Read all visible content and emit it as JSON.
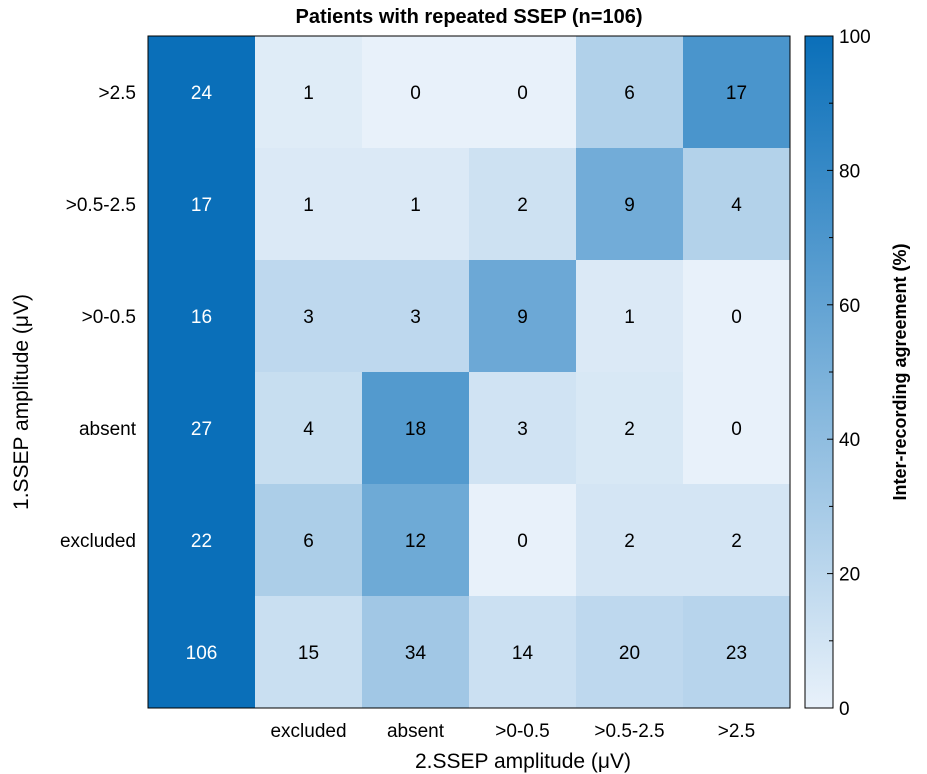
{
  "chart_data": {
    "type": "heatmap",
    "title": "Patients with repeated SSEP (n=106)",
    "xlabel": "2.SSEP amplitude (μV)",
    "ylabel": "1.SSEP amplitude (μV)",
    "x_tick_labels": [
      "",
      "excluded",
      "absent",
      ">0-0.5",
      ">0.5-2.5",
      ">2.5"
    ],
    "y_tick_labels": [
      ">2.5",
      ">0.5-2.5",
      ">0-0.5",
      "absent",
      "excluded",
      ""
    ],
    "cell_counts": [
      [
        24,
        1,
        0,
        0,
        6,
        17
      ],
      [
        17,
        1,
        1,
        2,
        9,
        4
      ],
      [
        16,
        3,
        3,
        9,
        1,
        0
      ],
      [
        27,
        4,
        18,
        3,
        2,
        0
      ],
      [
        22,
        6,
        12,
        0,
        2,
        2
      ],
      [
        106,
        15,
        34,
        14,
        20,
        23
      ]
    ],
    "agreement_percent": [
      [
        100,
        4,
        0,
        0,
        25,
        71
      ],
      [
        100,
        6,
        6,
        12,
        53,
        24
      ],
      [
        100,
        19,
        19,
        56,
        6,
        0
      ],
      [
        100,
        15,
        67,
        11,
        7,
        0
      ],
      [
        100,
        27,
        55,
        0,
        9,
        9
      ],
      [
        100,
        14,
        32,
        13,
        19,
        22
      ]
    ],
    "colorbar": {
      "label": "Inter-recording agreement (%)",
      "range": [
        0,
        100
      ],
      "ticks": [
        0,
        20,
        40,
        60,
        80,
        100
      ],
      "color_low": "#e8f1fa",
      "color_high": "#0a6fb9"
    }
  }
}
